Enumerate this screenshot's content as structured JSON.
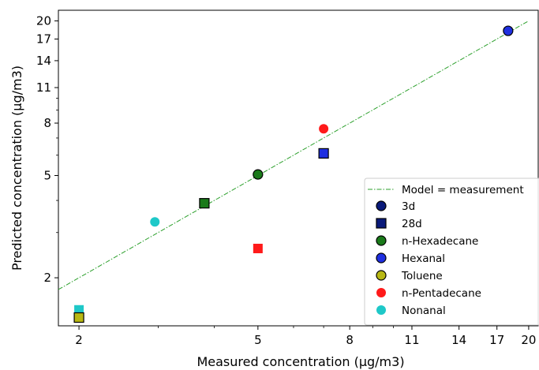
{
  "chart_data": {
    "type": "scatter",
    "x_scale": "log",
    "y_scale": "log",
    "xlim": [
      1.8,
      21
    ],
    "ylim": [
      1.3,
      22
    ],
    "xlabel": "Measured concentration (µg/m3)",
    "ylabel": "Predicted concentration (µg/m3)",
    "x_ticks": [
      2,
      5,
      8,
      11,
      14,
      17,
      20
    ],
    "y_ticks": [
      2,
      5,
      8,
      11,
      14,
      17,
      20
    ],
    "grid": false,
    "legend_position": "bottom-right",
    "reference_line": {
      "name": "Model = measurement",
      "color": "#2ca02c",
      "style": "dash-dot",
      "x": [
        1.8,
        20
      ],
      "y": [
        1.8,
        20
      ]
    },
    "legend_markers": [
      {
        "name": "3d",
        "marker": "circle",
        "color": "#0a1a7a"
      },
      {
        "name": "28d",
        "marker": "square",
        "color": "#0a1a7a"
      },
      {
        "name": "n-Hexadecane",
        "marker": "circle",
        "color": "#1a7a1a"
      },
      {
        "name": "Hexanal",
        "marker": "circle",
        "color": "#1f2fe0"
      },
      {
        "name": "Toluene",
        "marker": "circle",
        "color": "#b8b814"
      },
      {
        "name": "n-Pentadecane",
        "marker": "circle",
        "color": "#ff1a1a"
      },
      {
        "name": "Nonanal",
        "marker": "circle",
        "color": "#1ec8c8"
      }
    ],
    "points": [
      {
        "compound": "Hexanal",
        "period": "3d",
        "x": 18.0,
        "y": 18.3
      },
      {
        "compound": "Hexanal",
        "period": "28d",
        "x": 7.0,
        "y": 6.1
      },
      {
        "compound": "n-Hexadecane",
        "period": "3d",
        "x": 5.0,
        "y": 5.05
      },
      {
        "compound": "n-Hexadecane",
        "period": "28d",
        "x": 3.8,
        "y": 3.9
      },
      {
        "compound": "n-Pentadecane",
        "period": "3d",
        "x": 7.0,
        "y": 7.6
      },
      {
        "compound": "n-Pentadecane",
        "period": "28d",
        "x": 5.0,
        "y": 2.6
      },
      {
        "compound": "Nonanal",
        "period": "3d",
        "x": 2.95,
        "y": 3.3
      },
      {
        "compound": "Nonanal",
        "period": "28d",
        "x": 2.0,
        "y": 1.5
      },
      {
        "compound": "Toluene",
        "period": "28d",
        "x": 2.0,
        "y": 1.4
      }
    ]
  }
}
